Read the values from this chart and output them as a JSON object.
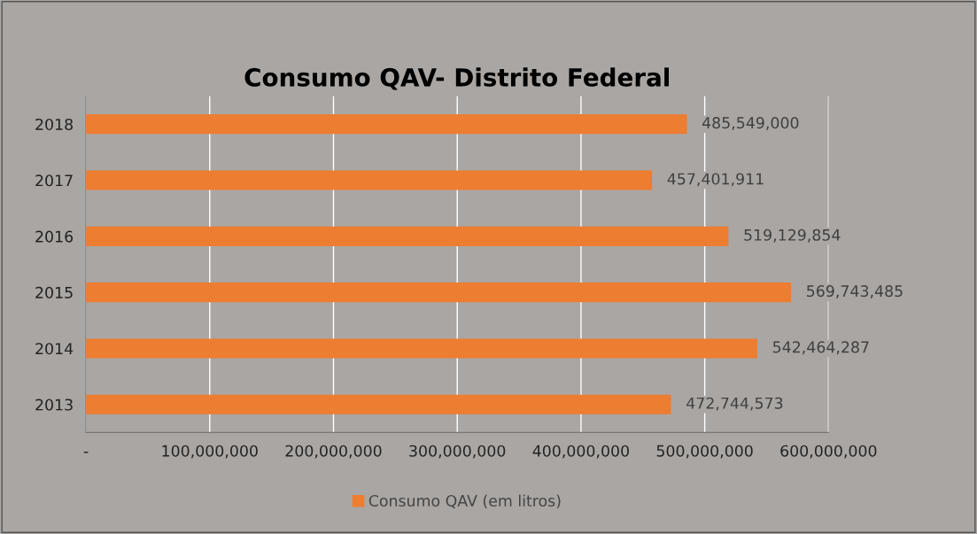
{
  "chart_data": {
    "type": "bar",
    "orientation": "horizontal",
    "title": "Consumo QAV- Distrito Federal",
    "categories": [
      "2018",
      "2017",
      "2016",
      "2015",
      "2014",
      "2013"
    ],
    "series": [
      {
        "name": "Consumo QAV (em litros)",
        "color": "#ed7d31",
        "values": [
          485549000,
          457401911,
          519129854,
          569743485,
          542464287,
          472744573
        ],
        "value_labels": [
          "485,549,000",
          "457,401,911",
          "519,129,854",
          "569,743,485",
          "542,464,287",
          "472,744,573"
        ]
      }
    ],
    "xlim": [
      0,
      600000000
    ],
    "xticks": [
      {
        "value": 0,
        "label": "-"
      },
      {
        "value": 100000000,
        "label": "100,000,000"
      },
      {
        "value": 200000000,
        "label": "200,000,000"
      },
      {
        "value": 300000000,
        "label": "300,000,000"
      },
      {
        "value": 400000000,
        "label": "400,000,000"
      },
      {
        "value": 500000000,
        "label": "500,000,000"
      },
      {
        "value": 600000000,
        "label": "600,000,000"
      }
    ],
    "grid": "x",
    "legend": "bottom"
  }
}
